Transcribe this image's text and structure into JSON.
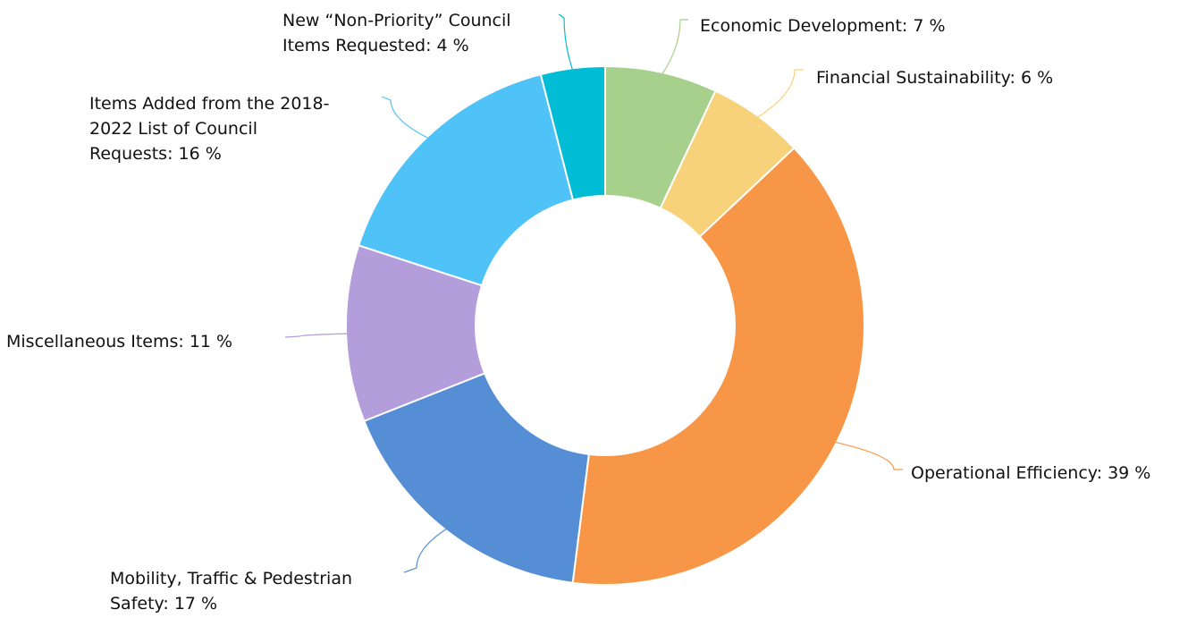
{
  "chart_data": {
    "type": "pie",
    "variant": "donut",
    "legend": "none",
    "slices": [
      {
        "label": "Economic Development",
        "value": 7,
        "value_text": "7 %",
        "color": "#a8d08d"
      },
      {
        "label": "Financial Sustainability",
        "value": 6,
        "value_text": "6 %",
        "color": "#f7d27a"
      },
      {
        "label": "Operational Efficiency",
        "value": 39,
        "value_text": "39 %",
        "color": "#f79646"
      },
      {
        "label": "Mobility, Traffic & Pedestrian Safety",
        "value": 17,
        "value_text": "17 %",
        "color": "#558ed5"
      },
      {
        "label": "Miscellaneous Items",
        "value": 11,
        "value_text": "11 %",
        "color": "#b39ddb"
      },
      {
        "label": "Items Added from the 2018-2022 List of Council Requests",
        "value": 16,
        "value_text": "16 %",
        "color": "#4fc3f7"
      },
      {
        "label": "New “Non-Priority” Council Items Requested",
        "value": 4,
        "value_text": "4 %",
        "color": "#00bcd4"
      }
    ]
  }
}
